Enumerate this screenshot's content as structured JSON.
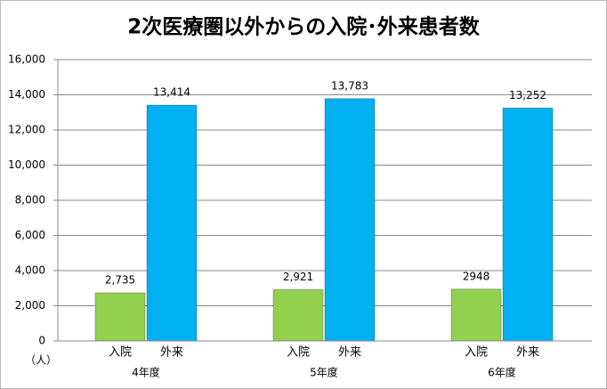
{
  "chart_data": {
    "type": "bar",
    "title": "2次医療圏以外からの入院･外来患者数",
    "y_unit": "（人）",
    "categories": [
      "4年度",
      "5年度",
      "6年度"
    ],
    "series": [
      {
        "name": "入院",
        "color": "#92d050",
        "values": [
          2735,
          2921,
          2948
        ],
        "value_labels": [
          "2,735",
          "2,921",
          "2948"
        ]
      },
      {
        "name": "外来",
        "color": "#00b0f0",
        "values": [
          13414,
          13783,
          13252
        ],
        "value_labels": [
          "13,414",
          "13,783",
          "13,252"
        ]
      }
    ],
    "ylim": [
      0,
      16000
    ],
    "yticks": [
      0,
      {
        "value": 2000,
        "label": "2,000"
      },
      {
        "value": 4000,
        "label": "4,000"
      },
      {
        "value": 6000,
        "label": "6,000"
      },
      {
        "value": 8000,
        "label": "8,000"
      },
      {
        "value": 10000,
        "label": "10,000"
      },
      {
        "value": 12000,
        "label": "12,000"
      },
      {
        "value": 14000,
        "label": "14,000"
      },
      {
        "value": 16000,
        "label": "16,000"
      }
    ],
    "grid": true
  }
}
